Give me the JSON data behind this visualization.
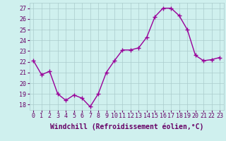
{
  "x": [
    0,
    1,
    2,
    3,
    4,
    5,
    6,
    7,
    8,
    9,
    10,
    11,
    12,
    13,
    14,
    15,
    16,
    17,
    18,
    19,
    20,
    21,
    22,
    23
  ],
  "y": [
    22.1,
    20.8,
    21.1,
    19.0,
    18.4,
    18.9,
    18.6,
    17.8,
    19.0,
    21.0,
    22.1,
    23.1,
    23.1,
    23.3,
    24.3,
    26.2,
    27.0,
    27.0,
    26.3,
    25.0,
    22.6,
    22.1,
    22.2,
    22.4
  ],
  "line_color": "#990099",
  "marker": "+",
  "marker_size": 4,
  "marker_linewidth": 1.0,
  "bg_color": "#cff0ee",
  "grid_color": "#aacccc",
  "xlabel": "Windchill (Refroidissement éolien,°C)",
  "xlabel_fontsize": 7,
  "ylim": [
    17.5,
    27.5
  ],
  "yticks": [
    18,
    19,
    20,
    21,
    22,
    23,
    24,
    25,
    26,
    27
  ],
  "xticks": [
    0,
    1,
    2,
    3,
    4,
    5,
    6,
    7,
    8,
    9,
    10,
    11,
    12,
    13,
    14,
    15,
    16,
    17,
    18,
    19,
    20,
    21,
    22,
    23
  ],
  "tick_fontsize": 6,
  "linewidth": 1.0,
  "text_color": "#660066"
}
